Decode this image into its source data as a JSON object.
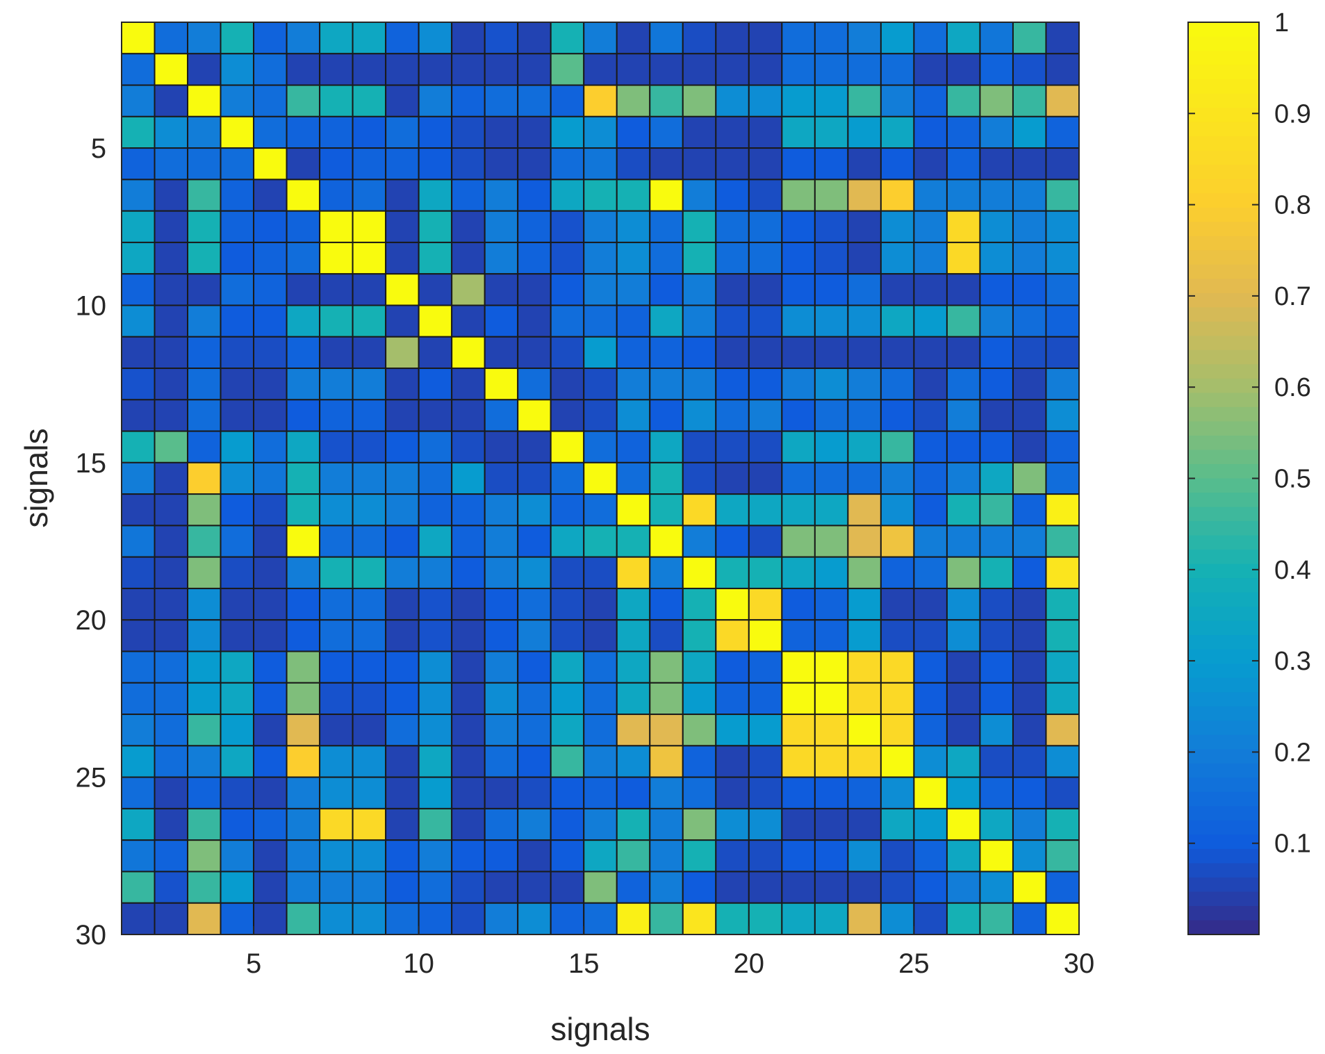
{
  "chart_data": {
    "type": "heatmap",
    "title": "",
    "xlabel": "signals",
    "ylabel": "signals",
    "x_ticks": [
      5,
      10,
      15,
      20,
      25,
      30
    ],
    "y_ticks": [
      5,
      10,
      15,
      20,
      25,
      30
    ],
    "x_range": [
      1,
      30
    ],
    "y_range": [
      1,
      30
    ],
    "colormap": "parula",
    "color_range": [
      0,
      1
    ],
    "colorbar_ticks": [
      0.1,
      0.2,
      0.3,
      0.4,
      0.5,
      0.6,
      0.7,
      0.8,
      0.9,
      1
    ],
    "colorbar_tick_labels": [
      "0.1",
      "0.2",
      "0.3",
      "0.4",
      "0.5",
      "0.6",
      "0.7",
      "0.8",
      "0.9",
      "1"
    ],
    "colorbar_location": "right",
    "grid": false,
    "matrix": [
      [
        1,
        0.15,
        0.2,
        0.4,
        0.12,
        0.2,
        0.35,
        0.35,
        0.12,
        0.25,
        0.05,
        0.08,
        0.05,
        0.4,
        0.2,
        0.05,
        0.18,
        0.07,
        0.05,
        0.05,
        0.15,
        0.15,
        0.2,
        0.3,
        0.15,
        0.35,
        0.18,
        0.45,
        0.05
      ],
      [
        0.15,
        1,
        0.05,
        0.25,
        0.15,
        0.05,
        0.05,
        0.05,
        0.05,
        0.05,
        0.05,
        0.05,
        0.05,
        0.5,
        0.05,
        0.05,
        0.05,
        0.05,
        0.05,
        0.05,
        0.15,
        0.15,
        0.15,
        0.15,
        0.05,
        0.05,
        0.12,
        0.08,
        0.05
      ],
      [
        0.2,
        0.05,
        1,
        0.2,
        0.15,
        0.45,
        0.4,
        0.4,
        0.05,
        0.2,
        0.12,
        0.15,
        0.15,
        0.12,
        0.8,
        0.55,
        0.45,
        0.55,
        0.25,
        0.25,
        0.3,
        0.3,
        0.45,
        0.2,
        0.12,
        0.45,
        0.55,
        0.45,
        0.7
      ],
      [
        0.4,
        0.25,
        0.2,
        1,
        0.15,
        0.12,
        0.12,
        0.1,
        0.15,
        0.1,
        0.07,
        0.05,
        0.05,
        0.3,
        0.25,
        0.1,
        0.15,
        0.05,
        0.05,
        0.05,
        0.35,
        0.35,
        0.3,
        0.35,
        0.1,
        0.12,
        0.2,
        0.3,
        0.12
      ],
      [
        0.12,
        0.15,
        0.15,
        0.15,
        1,
        0.05,
        0.1,
        0.12,
        0.12,
        0.1,
        0.07,
        0.05,
        0.05,
        0.15,
        0.18,
        0.07,
        0.05,
        0.05,
        0.05,
        0.05,
        0.1,
        0.1,
        0.05,
        0.1,
        0.05,
        0.12,
        0.05,
        0.05,
        0.05
      ],
      [
        0.2,
        0.05,
        0.45,
        0.12,
        0.05,
        1,
        0.12,
        0.15,
        0.05,
        0.35,
        0.12,
        0.2,
        0.1,
        0.35,
        0.4,
        0.4,
        1,
        0.2,
        0.1,
        0.07,
        0.55,
        0.55,
        0.7,
        0.8,
        0.2,
        0.2,
        0.2,
        0.2,
        0.45
      ],
      [
        0.35,
        0.05,
        0.4,
        0.12,
        0.1,
        0.12,
        1,
        1,
        0.05,
        0.4,
        0.05,
        0.2,
        0.12,
        0.08,
        0.2,
        0.25,
        0.15,
        0.4,
        0.15,
        0.15,
        0.1,
        0.08,
        0.05,
        0.25,
        0.2,
        0.85,
        0.25,
        0.2,
        0.25
      ],
      [
        0.35,
        0.05,
        0.4,
        0.1,
        0.12,
        0.15,
        1,
        1,
        0.05,
        0.4,
        0.05,
        0.2,
        0.12,
        0.08,
        0.2,
        0.25,
        0.15,
        0.4,
        0.15,
        0.15,
        0.1,
        0.08,
        0.05,
        0.25,
        0.2,
        0.85,
        0.25,
        0.2,
        0.25
      ],
      [
        0.12,
        0.05,
        0.05,
        0.15,
        0.12,
        0.05,
        0.05,
        0.05,
        1,
        0.05,
        0.6,
        0.05,
        0.05,
        0.1,
        0.2,
        0.2,
        0.1,
        0.2,
        0.05,
        0.05,
        0.1,
        0.1,
        0.15,
        0.05,
        0.05,
        0.05,
        0.1,
        0.1,
        0.15
      ],
      [
        0.25,
        0.05,
        0.2,
        0.1,
        0.1,
        0.35,
        0.4,
        0.4,
        0.05,
        1,
        0.05,
        0.1,
        0.05,
        0.15,
        0.15,
        0.12,
        0.35,
        0.2,
        0.08,
        0.08,
        0.25,
        0.25,
        0.25,
        0.35,
        0.3,
        0.45,
        0.2,
        0.15,
        0.12
      ],
      [
        0.05,
        0.05,
        0.12,
        0.07,
        0.07,
        0.12,
        0.05,
        0.05,
        0.6,
        0.05,
        1,
        0.05,
        0.05,
        0.07,
        0.3,
        0.12,
        0.12,
        0.1,
        0.05,
        0.05,
        0.05,
        0.05,
        0.05,
        0.05,
        0.05,
        0.05,
        0.1,
        0.07,
        0.07
      ],
      [
        0.08,
        0.05,
        0.15,
        0.05,
        0.05,
        0.2,
        0.2,
        0.2,
        0.05,
        0.1,
        0.05,
        1,
        0.15,
        0.05,
        0.07,
        0.2,
        0.2,
        0.2,
        0.1,
        0.1,
        0.2,
        0.25,
        0.2,
        0.15,
        0.05,
        0.15,
        0.1,
        0.05,
        0.2
      ],
      [
        0.05,
        0.05,
        0.15,
        0.05,
        0.05,
        0.1,
        0.12,
        0.12,
        0.05,
        0.05,
        0.05,
        0.15,
        1,
        0.05,
        0.07,
        0.25,
        0.1,
        0.25,
        0.15,
        0.2,
        0.1,
        0.15,
        0.15,
        0.1,
        0.07,
        0.2,
        0.05,
        0.05,
        0.25
      ],
      [
        0.4,
        0.5,
        0.12,
        0.3,
        0.15,
        0.35,
        0.08,
        0.08,
        0.1,
        0.15,
        0.07,
        0.05,
        0.05,
        1,
        0.15,
        0.12,
        0.35,
        0.07,
        0.07,
        0.07,
        0.35,
        0.3,
        0.35,
        0.45,
        0.1,
        0.1,
        0.1,
        0.05,
        0.12
      ],
      [
        0.2,
        0.05,
        0.8,
        0.25,
        0.18,
        0.4,
        0.2,
        0.2,
        0.2,
        0.15,
        0.3,
        0.07,
        0.07,
        0.15,
        1,
        0.15,
        0.4,
        0.07,
        0.05,
        0.05,
        0.15,
        0.15,
        0.15,
        0.2,
        0.12,
        0.2,
        0.35,
        0.55,
        0.15
      ],
      [
        0.05,
        0.05,
        0.55,
        0.1,
        0.07,
        0.4,
        0.25,
        0.25,
        0.2,
        0.12,
        0.12,
        0.2,
        0.25,
        0.12,
        0.15,
        1,
        0.4,
        0.85,
        0.35,
        0.35,
        0.35,
        0.35,
        0.7,
        0.25,
        0.1,
        0.4,
        0.45,
        0.12,
        0.95
      ],
      [
        0.18,
        0.05,
        0.45,
        0.15,
        0.05,
        1,
        0.15,
        0.15,
        0.1,
        0.35,
        0.12,
        0.2,
        0.1,
        0.35,
        0.4,
        0.4,
        1,
        0.2,
        0.1,
        0.07,
        0.55,
        0.55,
        0.7,
        0.75,
        0.2,
        0.2,
        0.2,
        0.2,
        0.45
      ],
      [
        0.07,
        0.05,
        0.55,
        0.07,
        0.05,
        0.2,
        0.4,
        0.4,
        0.2,
        0.2,
        0.1,
        0.2,
        0.25,
        0.07,
        0.07,
        0.85,
        0.2,
        1,
        0.4,
        0.4,
        0.35,
        0.3,
        0.55,
        0.12,
        0.15,
        0.55,
        0.4,
        0.1,
        0.9
      ],
      [
        0.05,
        0.05,
        0.25,
        0.05,
        0.05,
        0.1,
        0.15,
        0.15,
        0.05,
        0.08,
        0.05,
        0.1,
        0.15,
        0.07,
        0.05,
        0.35,
        0.1,
        0.4,
        1,
        0.85,
        0.1,
        0.12,
        0.3,
        0.05,
        0.05,
        0.25,
        0.07,
        0.05,
        0.4
      ],
      [
        0.05,
        0.05,
        0.25,
        0.05,
        0.05,
        0.1,
        0.15,
        0.15,
        0.05,
        0.08,
        0.05,
        0.1,
        0.2,
        0.07,
        0.05,
        0.35,
        0.07,
        0.4,
        0.85,
        1,
        0.12,
        0.12,
        0.3,
        0.07,
        0.07,
        0.25,
        0.07,
        0.05,
        0.4
      ],
      [
        0.15,
        0.15,
        0.3,
        0.35,
        0.1,
        0.55,
        0.1,
        0.1,
        0.1,
        0.25,
        0.05,
        0.2,
        0.1,
        0.35,
        0.15,
        0.35,
        0.55,
        0.35,
        0.1,
        0.12,
        1,
        1,
        0.85,
        0.85,
        0.1,
        0.05,
        0.1,
        0.05,
        0.35
      ],
      [
        0.15,
        0.15,
        0.3,
        0.35,
        0.1,
        0.55,
        0.08,
        0.08,
        0.1,
        0.25,
        0.05,
        0.25,
        0.15,
        0.3,
        0.15,
        0.35,
        0.55,
        0.3,
        0.12,
        0.12,
        1,
        1,
        0.85,
        0.85,
        0.1,
        0.05,
        0.1,
        0.05,
        0.35
      ],
      [
        0.2,
        0.15,
        0.45,
        0.3,
        0.05,
        0.7,
        0.05,
        0.05,
        0.15,
        0.25,
        0.05,
        0.2,
        0.15,
        0.35,
        0.15,
        0.7,
        0.7,
        0.55,
        0.3,
        0.3,
        0.85,
        0.85,
        1,
        0.85,
        0.12,
        0.05,
        0.25,
        0.05,
        0.7
      ],
      [
        0.3,
        0.15,
        0.2,
        0.35,
        0.1,
        0.8,
        0.25,
        0.25,
        0.05,
        0.35,
        0.05,
        0.15,
        0.1,
        0.45,
        0.2,
        0.25,
        0.75,
        0.12,
        0.05,
        0.07,
        0.85,
        0.85,
        0.85,
        1,
        0.25,
        0.35,
        0.07,
        0.07,
        0.25
      ],
      [
        0.15,
        0.05,
        0.12,
        0.07,
        0.05,
        0.2,
        0.25,
        0.25,
        0.05,
        0.3,
        0.05,
        0.05,
        0.07,
        0.1,
        0.12,
        0.1,
        0.2,
        0.15,
        0.05,
        0.07,
        0.1,
        0.1,
        0.12,
        0.25,
        1,
        0.3,
        0.12,
        0.1,
        0.07
      ],
      [
        0.35,
        0.05,
        0.45,
        0.1,
        0.12,
        0.2,
        0.85,
        0.85,
        0.05,
        0.45,
        0.05,
        0.15,
        0.2,
        0.1,
        0.2,
        0.4,
        0.2,
        0.55,
        0.25,
        0.25,
        0.05,
        0.05,
        0.05,
        0.35,
        0.3,
        1,
        0.35,
        0.2,
        0.4
      ],
      [
        0.18,
        0.12,
        0.55,
        0.2,
        0.05,
        0.2,
        0.25,
        0.25,
        0.1,
        0.2,
        0.1,
        0.1,
        0.05,
        0.1,
        0.35,
        0.45,
        0.2,
        0.4,
        0.07,
        0.07,
        0.1,
        0.1,
        0.25,
        0.07,
        0.12,
        0.35,
        1,
        0.25,
        0.45
      ],
      [
        0.45,
        0.08,
        0.45,
        0.3,
        0.05,
        0.2,
        0.2,
        0.2,
        0.1,
        0.15,
        0.07,
        0.05,
        0.05,
        0.05,
        0.55,
        0.12,
        0.2,
        0.1,
        0.05,
        0.05,
        0.05,
        0.05,
        0.05,
        0.07,
        0.1,
        0.2,
        0.25,
        1,
        0.12
      ],
      [
        0.05,
        0.05,
        0.7,
        0.12,
        0.05,
        0.45,
        0.25,
        0.25,
        0.15,
        0.12,
        0.07,
        0.2,
        0.25,
        0.12,
        0.15,
        0.95,
        0.45,
        0.9,
        0.4,
        0.4,
        0.35,
        0.35,
        0.7,
        0.25,
        0.07,
        0.4,
        0.45,
        0.12,
        1
      ]
    ]
  }
}
